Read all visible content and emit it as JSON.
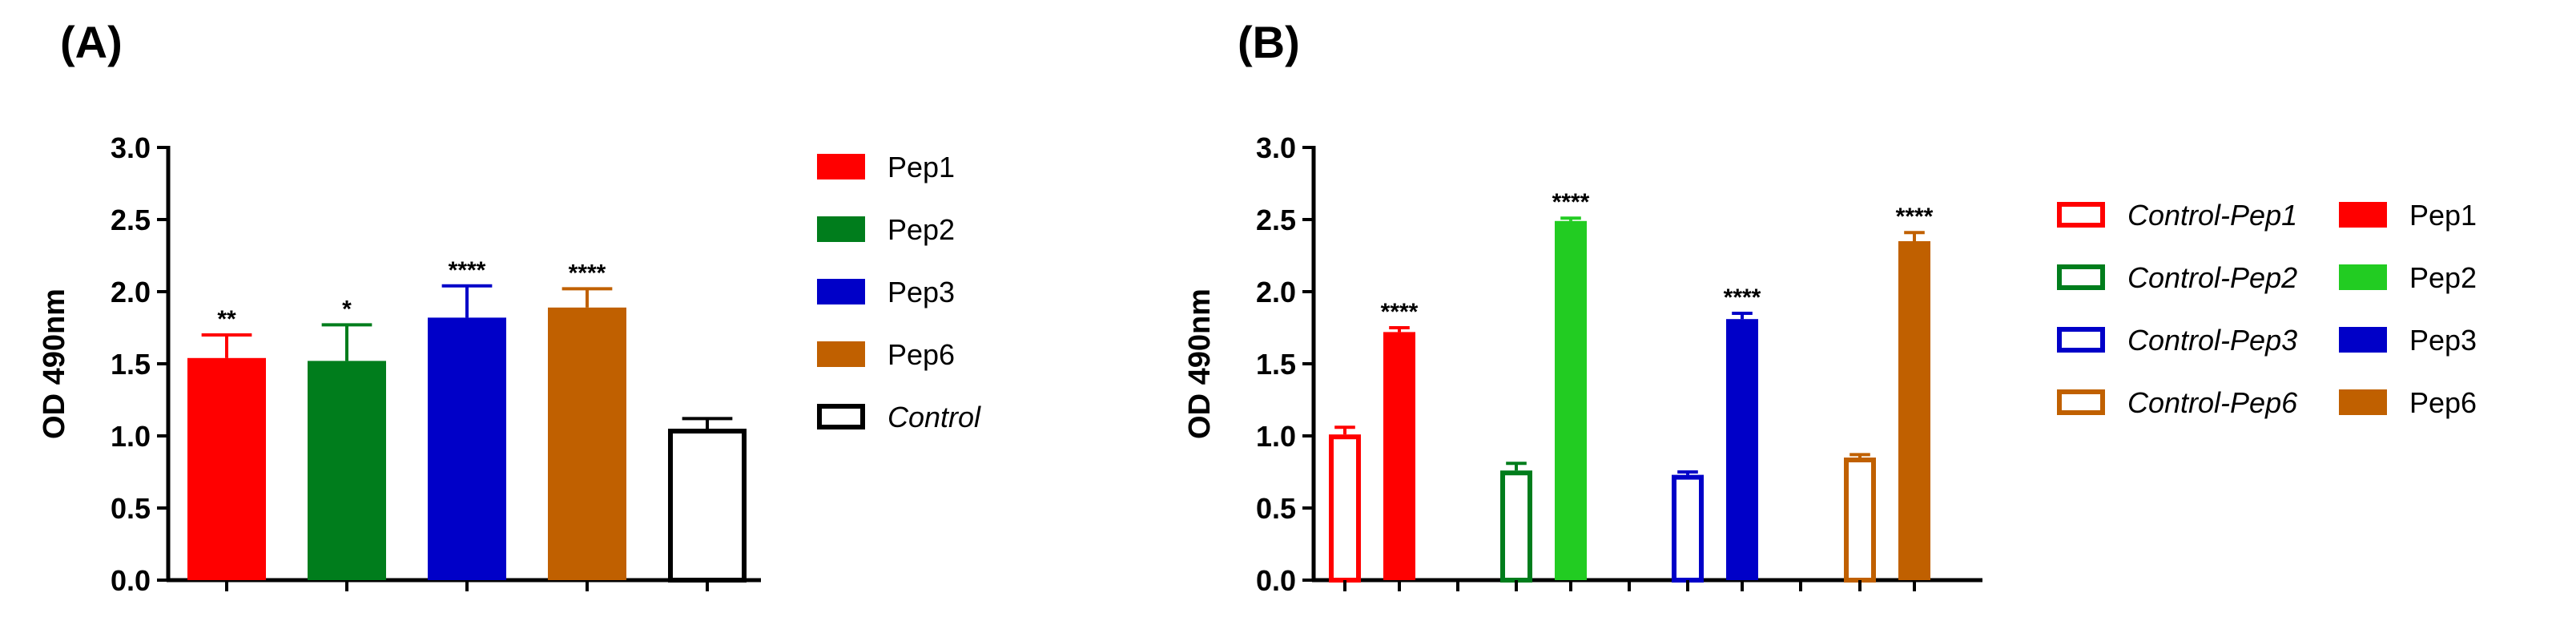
{
  "chart_data": [
    {
      "panel": "(A)",
      "type": "bar",
      "ylabel": "OD 490nm",
      "ylim": [
        0,
        3.0
      ],
      "yticks": [
        "0.0",
        "0.5",
        "1.0",
        "1.5",
        "2.0",
        "2.5",
        "3.0"
      ],
      "categories": [
        "Pep1",
        "Pep2",
        "Pep3",
        "Pep6",
        "Control"
      ],
      "values": [
        1.54,
        1.52,
        1.82,
        1.89,
        1.05
      ],
      "errors": [
        0.16,
        0.25,
        0.22,
        0.13,
        0.07
      ],
      "significance": [
        "**",
        "*",
        "****",
        "****",
        ""
      ],
      "colors": [
        "#ff0000",
        "#007d1c",
        "#0000c8",
        "#c06000",
        "#ffffff"
      ],
      "legend": [
        {
          "label": "Pep1",
          "color": "#ff0000",
          "filled": true,
          "italic": false
        },
        {
          "label": "Pep2",
          "color": "#007d1c",
          "filled": true,
          "italic": false
        },
        {
          "label": "Pep3",
          "color": "#0000c8",
          "filled": true,
          "italic": false
        },
        {
          "label": "Pep6",
          "color": "#c06000",
          "filled": true,
          "italic": false
        },
        {
          "label": "Control",
          "color": "#000000",
          "filled": false,
          "italic": true
        }
      ]
    },
    {
      "panel": "(B)",
      "type": "bar",
      "ylabel": "OD 490nm",
      "ylim": [
        0,
        3.0
      ],
      "yticks": [
        "0.0",
        "0.5",
        "1.0",
        "1.5",
        "2.0",
        "2.5",
        "3.0"
      ],
      "groups": [
        {
          "bars": [
            {
              "label": "Control-Pep1",
              "value": 1.01,
              "error": 0.05,
              "color": "#ff0000",
              "filled": false,
              "sig": ""
            },
            {
              "label": "Pep1",
              "value": 1.72,
              "error": 0.03,
              "color": "#ff0000",
              "filled": true,
              "sig": "****"
            }
          ]
        },
        {
          "bars": [
            {
              "label": "Control-Pep2",
              "value": 0.76,
              "error": 0.05,
              "color": "#007d1c",
              "filled": false,
              "sig": ""
            },
            {
              "label": "Pep2",
              "value": 2.49,
              "error": 0.02,
              "color": "#22cc22",
              "filled": true,
              "sig": "****"
            }
          ]
        },
        {
          "bars": [
            {
              "label": "Control-Pep3",
              "value": 0.73,
              "error": 0.02,
              "color": "#0000c8",
              "filled": false,
              "sig": ""
            },
            {
              "label": "Pep3",
              "value": 1.81,
              "error": 0.04,
              "color": "#0000c8",
              "filled": true,
              "sig": "****"
            }
          ]
        },
        {
          "bars": [
            {
              "label": "Control-Pep6",
              "value": 0.85,
              "error": 0.02,
              "color": "#c06000",
              "filled": false,
              "sig": ""
            },
            {
              "label": "Pep6",
              "value": 2.35,
              "error": 0.06,
              "color": "#c06000",
              "filled": true,
              "sig": "****"
            }
          ]
        }
      ],
      "legend_left": [
        {
          "label": "Control-Pep1",
          "color": "#ff0000",
          "filled": false,
          "italic": true
        },
        {
          "label": "Control-Pep2",
          "color": "#007d1c",
          "filled": false,
          "italic": true
        },
        {
          "label": "Control-Pep3",
          "color": "#0000c8",
          "filled": false,
          "italic": true
        },
        {
          "label": "Control-Pep6",
          "color": "#c06000",
          "filled": false,
          "italic": true
        }
      ],
      "legend_right": [
        {
          "label": "Pep1",
          "color": "#ff0000",
          "filled": true,
          "italic": false
        },
        {
          "label": "Pep2",
          "color": "#22cc22",
          "filled": true,
          "italic": false
        },
        {
          "label": "Pep3",
          "color": "#0000c8",
          "filled": true,
          "italic": false
        },
        {
          "label": "Pep6",
          "color": "#c06000",
          "filled": true,
          "italic": false
        }
      ]
    }
  ]
}
